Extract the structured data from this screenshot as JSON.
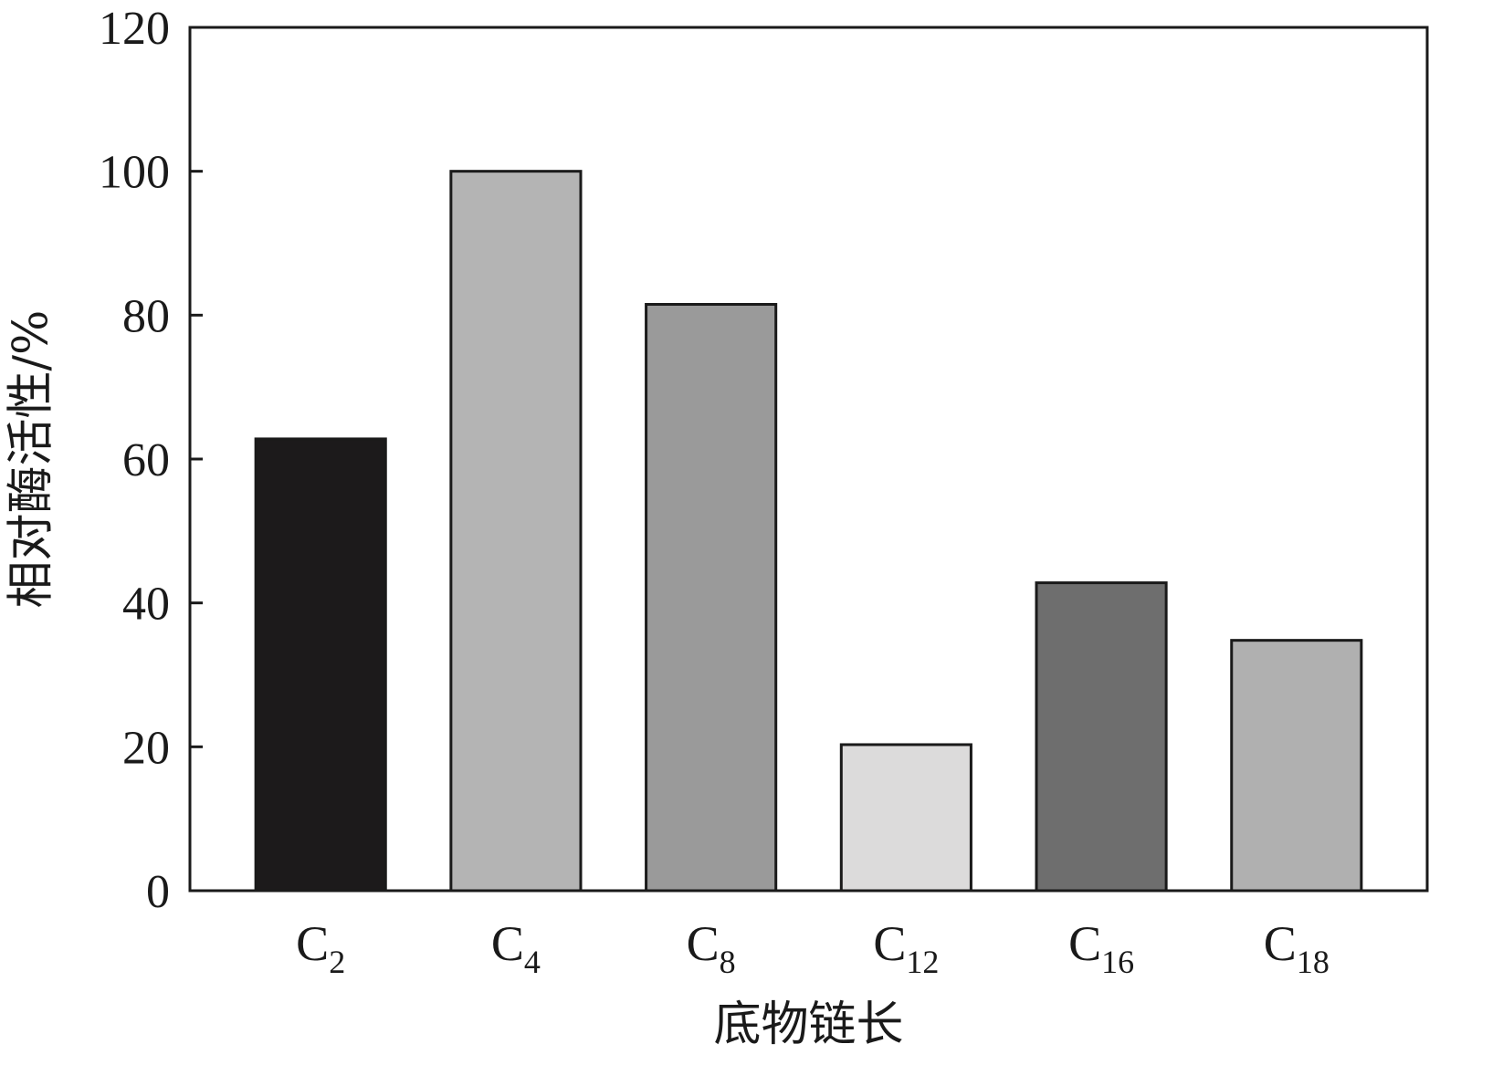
{
  "chart_data": {
    "type": "bar",
    "categories": [
      {
        "base": "C",
        "sub": "2"
      },
      {
        "base": "C",
        "sub": "4"
      },
      {
        "base": "C",
        "sub": "8"
      },
      {
        "base": "C",
        "sub": "12"
      },
      {
        "base": "C",
        "sub": "16"
      },
      {
        "base": "C",
        "sub": "18"
      }
    ],
    "values": [
      62.8,
      100,
      81.5,
      20.3,
      42.8,
      34.8
    ],
    "colors": [
      "#1c1a1b",
      "#b4b4b4",
      "#9a9a9a",
      "#dcdbdb",
      "#6e6e6e",
      "#b0b0b0"
    ],
    "title": "",
    "xlabel": "底物链长",
    "ylabel": "相对酶活性/%",
    "ylim": [
      0,
      120
    ],
    "yticks": [
      0,
      20,
      40,
      60,
      80,
      100,
      120
    ],
    "grid": false,
    "legend": "none"
  }
}
